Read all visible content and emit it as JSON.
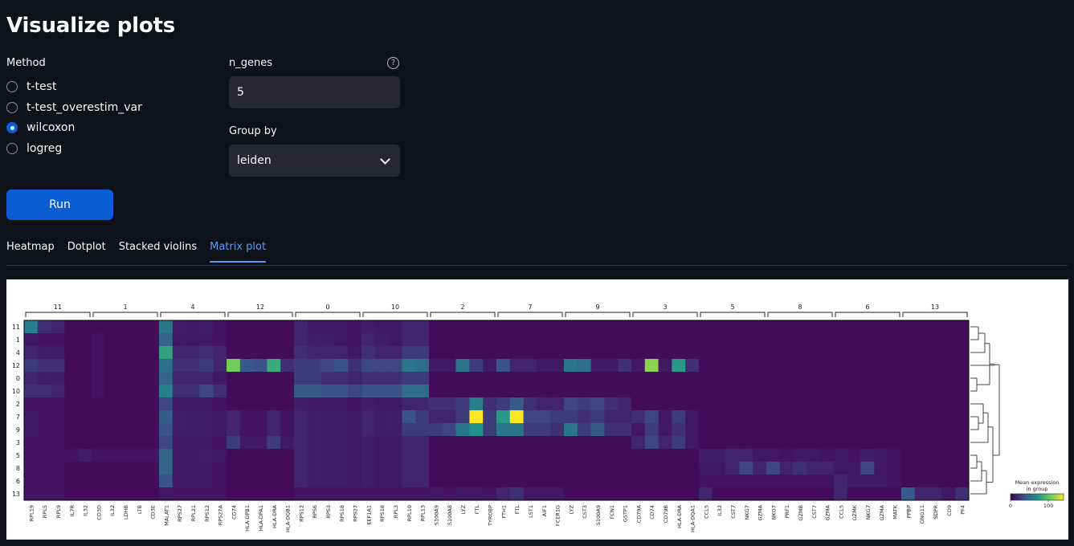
{
  "page_title": "Visualize plots",
  "method": {
    "label": "Method",
    "options": [
      "t-test",
      "t-test_overestim_var",
      "wilcoxon",
      "logreg"
    ],
    "selected": 2
  },
  "n_genes": {
    "label": "n_genes",
    "value": "5",
    "help_icon": "question-circle-icon"
  },
  "group_by": {
    "label": "Group by",
    "value": "leiden",
    "icon": "chevron-down-icon"
  },
  "run_label": "Run",
  "tabs": [
    "Heatmap",
    "Dotplot",
    "Stacked violins",
    "Matrix plot"
  ],
  "active_tab": 3,
  "colors": {
    "accent": "#0c5cd6",
    "tab_active": "#5a9cf2",
    "background": "#0e1117",
    "input_bg": "#262730"
  },
  "chart_data": {
    "type": "heatmap",
    "rows": [
      "11",
      "1",
      "4",
      "12",
      "0",
      "10",
      "2",
      "7",
      "9",
      "3",
      "5",
      "8",
      "6",
      "13"
    ],
    "gene_groups": [
      {
        "label": "11",
        "genes": [
          "RPL19",
          "RPL5",
          "RPL9",
          "IL7R",
          "IL32"
        ]
      },
      {
        "label": "1",
        "genes": [
          "CD3D",
          "IL32",
          "LDHB",
          "LTB",
          "CD3E"
        ]
      },
      {
        "label": "4",
        "genes": [
          "MALAT1",
          "RPS27",
          "RPL21",
          "RPS12",
          "RPS27A"
        ]
      },
      {
        "label": "12",
        "genes": [
          "CD74",
          "HLA-DPB1",
          "HLA-DPA1",
          "HLA-DRA",
          "HLA-DQB1"
        ]
      },
      {
        "label": "0",
        "genes": [
          "RPS12",
          "RPS6",
          "RPS3",
          "RPS18",
          "RPS27"
        ]
      },
      {
        "label": "10",
        "genes": [
          "EEF1A1",
          "RPS18",
          "RPL3",
          "RPL10",
          "RPL13"
        ]
      },
      {
        "label": "2",
        "genes": [
          "S100A9",
          "S100A8",
          "LYZ",
          "FTL",
          "TYROBP"
        ]
      },
      {
        "label": "7",
        "genes": [
          "FTH1",
          "FTL",
          "LST1",
          "AIF1",
          "FCER1G"
        ]
      },
      {
        "label": "9",
        "genes": [
          "LYZ",
          "CST3",
          "S100A9",
          "FCN1",
          "GSTP1"
        ]
      },
      {
        "label": "3",
        "genes": [
          "CD79A",
          "CD74",
          "CD79B",
          "HLA-DRA",
          "HLA-DQA1"
        ]
      },
      {
        "label": "5",
        "genes": [
          "CCL5",
          "IL32",
          "CST7",
          "NKG7",
          "GZMA"
        ]
      },
      {
        "label": "8",
        "genes": [
          "NKG7",
          "PRF1",
          "GZMB",
          "CST7",
          "GZMA"
        ]
      },
      {
        "label": "6",
        "genes": [
          "CCL5",
          "GZMK",
          "NKG7",
          "GZMA",
          "MATK"
        ]
      },
      {
        "label": "13",
        "genes": [
          "PPBP",
          "GNG11",
          "SDPR",
          "CD9",
          "PF4"
        ]
      }
    ],
    "values": [
      [
        60,
        20,
        15,
        5,
        5,
        5,
        5,
        5,
        5,
        5,
        55,
        12,
        10,
        12,
        8,
        5,
        5,
        5,
        5,
        5,
        15,
        10,
        10,
        10,
        8,
        12,
        10,
        10,
        15,
        15,
        5,
        5,
        5,
        5,
        5,
        5,
        5,
        5,
        5,
        5,
        5,
        5,
        5,
        5,
        5,
        5,
        5,
        5,
        5,
        5,
        5,
        5,
        5,
        5,
        5,
        5,
        5,
        5,
        5,
        5,
        5,
        5,
        5,
        5,
        5,
        5,
        5,
        5,
        5,
        5
      ],
      [
        10,
        8,
        8,
        5,
        5,
        8,
        5,
        5,
        5,
        5,
        45,
        10,
        10,
        10,
        8,
        5,
        5,
        5,
        5,
        5,
        15,
        12,
        12,
        10,
        8,
        15,
        12,
        10,
        15,
        15,
        5,
        5,
        5,
        5,
        5,
        5,
        5,
        5,
        5,
        5,
        5,
        5,
        5,
        5,
        5,
        5,
        5,
        5,
        5,
        5,
        5,
        5,
        5,
        5,
        5,
        5,
        5,
        5,
        5,
        5,
        5,
        5,
        5,
        5,
        5,
        5,
        5,
        5,
        5,
        5
      ],
      [
        15,
        12,
        12,
        5,
        5,
        8,
        5,
        5,
        5,
        5,
        80,
        15,
        15,
        20,
        15,
        5,
        5,
        5,
        5,
        5,
        20,
        15,
        15,
        15,
        10,
        20,
        15,
        15,
        25,
        25,
        5,
        5,
        5,
        5,
        5,
        5,
        5,
        5,
        5,
        5,
        5,
        5,
        5,
        5,
        5,
        5,
        5,
        5,
        5,
        5,
        5,
        5,
        5,
        5,
        5,
        5,
        5,
        5,
        5,
        5,
        5,
        5,
        5,
        5,
        5,
        5,
        5,
        5,
        5,
        5
      ],
      [
        25,
        20,
        20,
        5,
        5,
        8,
        5,
        5,
        5,
        5,
        50,
        20,
        20,
        25,
        15,
        110,
        40,
        35,
        85,
        20,
        25,
        25,
        30,
        35,
        20,
        30,
        30,
        30,
        55,
        50,
        10,
        10,
        55,
        25,
        10,
        35,
        15,
        15,
        10,
        10,
        55,
        50,
        10,
        10,
        20,
        10,
        115,
        10,
        75,
        20,
        5,
        5,
        5,
        5,
        5,
        5,
        5,
        5,
        5,
        5,
        5,
        5,
        5,
        5,
        5,
        5,
        5,
        5,
        5,
        5
      ],
      [
        15,
        12,
        12,
        5,
        5,
        8,
        5,
        5,
        5,
        5,
        45,
        15,
        15,
        15,
        10,
        5,
        5,
        5,
        5,
        5,
        25,
        25,
        20,
        20,
        15,
        20,
        20,
        20,
        25,
        25,
        5,
        5,
        5,
        5,
        5,
        5,
        5,
        5,
        5,
        5,
        5,
        5,
        5,
        5,
        5,
        5,
        5,
        5,
        5,
        5,
        5,
        5,
        5,
        5,
        5,
        5,
        5,
        5,
        5,
        5,
        5,
        5,
        5,
        5,
        5,
        5,
        5,
        5,
        5,
        5
      ],
      [
        20,
        20,
        15,
        5,
        5,
        8,
        5,
        5,
        5,
        5,
        60,
        20,
        20,
        30,
        20,
        5,
        5,
        5,
        5,
        5,
        40,
        40,
        35,
        35,
        30,
        35,
        35,
        35,
        50,
        50,
        5,
        5,
        5,
        5,
        5,
        5,
        5,
        5,
        5,
        5,
        5,
        5,
        5,
        5,
        5,
        5,
        5,
        5,
        5,
        5,
        5,
        5,
        5,
        5,
        5,
        5,
        5,
        5,
        5,
        5,
        5,
        5,
        5,
        5,
        5,
        5,
        5,
        5,
        5,
        5
      ],
      [
        8,
        8,
        8,
        5,
        5,
        5,
        5,
        5,
        5,
        5,
        30,
        10,
        10,
        10,
        8,
        5,
        5,
        5,
        5,
        5,
        12,
        10,
        10,
        10,
        8,
        12,
        10,
        10,
        15,
        15,
        20,
        20,
        25,
        60,
        20,
        25,
        40,
        20,
        15,
        15,
        30,
        25,
        30,
        20,
        15,
        5,
        5,
        5,
        5,
        5,
        5,
        5,
        5,
        5,
        5,
        5,
        5,
        5,
        5,
        5,
        5,
        5,
        5,
        5,
        5,
        5,
        5,
        5,
        5,
        5
      ],
      [
        10,
        8,
        8,
        5,
        5,
        5,
        5,
        5,
        5,
        5,
        40,
        12,
        12,
        12,
        10,
        15,
        8,
        8,
        15,
        8,
        15,
        12,
        12,
        12,
        10,
        15,
        12,
        12,
        35,
        25,
        15,
        15,
        25,
        140,
        25,
        75,
        140,
        30,
        30,
        25,
        25,
        20,
        25,
        15,
        15,
        20,
        30,
        10,
        25,
        10,
        5,
        5,
        5,
        5,
        5,
        5,
        5,
        5,
        5,
        5,
        5,
        5,
        5,
        5,
        5,
        5,
        5,
        5,
        5,
        5
      ],
      [
        10,
        8,
        8,
        5,
        5,
        5,
        5,
        5,
        5,
        5,
        35,
        12,
        12,
        12,
        10,
        15,
        8,
        8,
        15,
        8,
        15,
        12,
        12,
        12,
        10,
        15,
        12,
        12,
        25,
        25,
        25,
        30,
        55,
        70,
        25,
        55,
        55,
        25,
        25,
        20,
        55,
        25,
        40,
        20,
        20,
        10,
        25,
        10,
        20,
        10,
        5,
        5,
        5,
        5,
        5,
        5,
        5,
        5,
        5,
        5,
        5,
        5,
        5,
        5,
        5,
        5,
        5,
        5,
        5,
        5
      ],
      [
        8,
        8,
        8,
        5,
        5,
        5,
        5,
        5,
        5,
        5,
        30,
        10,
        10,
        10,
        8,
        25,
        10,
        10,
        25,
        10,
        15,
        12,
        12,
        12,
        10,
        12,
        10,
        10,
        15,
        15,
        5,
        5,
        5,
        5,
        5,
        5,
        5,
        5,
        5,
        5,
        5,
        5,
        5,
        5,
        5,
        15,
        30,
        15,
        25,
        10,
        5,
        5,
        5,
        5,
        5,
        5,
        5,
        5,
        5,
        5,
        5,
        5,
        5,
        5,
        5,
        5,
        5,
        5,
        5,
        5
      ],
      [
        8,
        8,
        8,
        8,
        12,
        8,
        8,
        8,
        8,
        8,
        45,
        10,
        10,
        12,
        10,
        5,
        5,
        5,
        5,
        5,
        15,
        12,
        12,
        12,
        10,
        12,
        10,
        10,
        15,
        15,
        5,
        5,
        5,
        5,
        5,
        5,
        5,
        5,
        5,
        5,
        5,
        5,
        5,
        5,
        5,
        5,
        5,
        5,
        5,
        5,
        12,
        12,
        15,
        15,
        10,
        10,
        8,
        10,
        10,
        8,
        10,
        8,
        12,
        10,
        8,
        5,
        5,
        5,
        5,
        5
      ],
      [
        8,
        8,
        8,
        5,
        5,
        5,
        5,
        5,
        5,
        5,
        45,
        10,
        10,
        10,
        8,
        5,
        5,
        5,
        5,
        5,
        15,
        12,
        12,
        12,
        10,
        12,
        10,
        10,
        15,
        15,
        5,
        5,
        5,
        5,
        5,
        5,
        5,
        5,
        5,
        5,
        5,
        5,
        5,
        5,
        5,
        5,
        5,
        5,
        5,
        5,
        10,
        10,
        15,
        30,
        15,
        30,
        15,
        20,
        15,
        15,
        10,
        10,
        30,
        10,
        8,
        5,
        5,
        5,
        5,
        5
      ],
      [
        8,
        8,
        8,
        5,
        5,
        5,
        5,
        5,
        5,
        5,
        35,
        10,
        10,
        10,
        8,
        5,
        5,
        5,
        5,
        5,
        15,
        12,
        12,
        12,
        10,
        12,
        10,
        10,
        15,
        15,
        5,
        5,
        5,
        5,
        5,
        5,
        5,
        5,
        5,
        5,
        5,
        5,
        5,
        5,
        5,
        5,
        5,
        5,
        5,
        5,
        8,
        8,
        8,
        8,
        8,
        8,
        8,
        8,
        8,
        8,
        15,
        10,
        10,
        10,
        8,
        5,
        5,
        5,
        5,
        5
      ],
      [
        8,
        8,
        8,
        5,
        5,
        5,
        5,
        5,
        5,
        5,
        10,
        8,
        8,
        8,
        8,
        5,
        5,
        5,
        5,
        5,
        8,
        8,
        8,
        8,
        8,
        8,
        8,
        8,
        8,
        8,
        10,
        8,
        10,
        10,
        8,
        15,
        20,
        10,
        10,
        10,
        5,
        5,
        5,
        5,
        5,
        5,
        5,
        5,
        5,
        5,
        15,
        5,
        5,
        5,
        5,
        5,
        5,
        5,
        5,
        5,
        15,
        5,
        5,
        5,
        5,
        40,
        15,
        15,
        10,
        20
      ]
    ],
    "colorbar": {
      "title": "Mean expression\nin group",
      "ticks": [
        0,
        100
      ],
      "range": [
        0,
        140
      ],
      "colormap": "viridis"
    }
  }
}
